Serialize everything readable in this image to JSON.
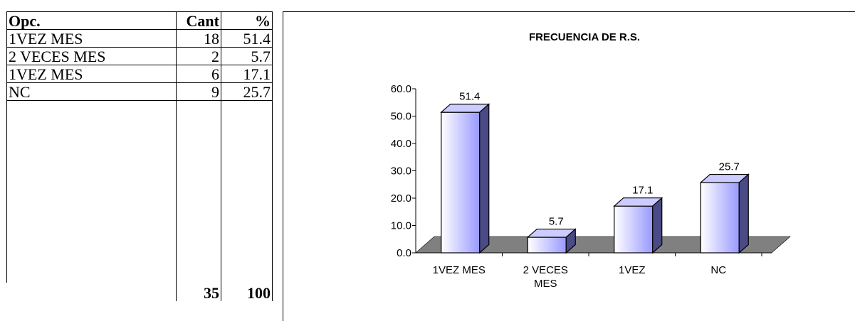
{
  "table": {
    "headers": {
      "opc": "Opc.",
      "cant": "Cant",
      "pct": "%"
    },
    "rows": [
      {
        "opc": "1VEZ MES",
        "cant": "18",
        "pct": "51.4"
      },
      {
        "opc": "2 VECES MES",
        "cant": "2",
        "pct": "5.7"
      },
      {
        "opc": "1VEZ MES",
        "cant": "6",
        "pct": "17.1"
      },
      {
        "opc": "NC",
        "cant": "9",
        "pct": "25.7"
      }
    ],
    "total": {
      "cant": "35",
      "pct": "100"
    }
  },
  "chart_data": {
    "type": "bar",
    "title": "FRECUENCIA DE R.S.",
    "categories": [
      [
        "1VEZ MES"
      ],
      [
        "2 VECES",
        "MES"
      ],
      [
        "1VEZ"
      ],
      [
        "NC"
      ]
    ],
    "values": [
      51.4,
      5.7,
      17.1,
      25.7
    ],
    "value_labels": [
      "51.4",
      "5.7",
      "17.1",
      "25.7"
    ],
    "ylim": [
      0,
      60
    ],
    "yticks": [
      "0.0",
      "10.0",
      "20.0",
      "30.0",
      "40.0",
      "50.0",
      "60.0"
    ],
    "style": "3d-column",
    "colors": {
      "bar_front_light": "#ffffff",
      "bar_front_dark": "#9999ff",
      "bar_top": "#ccccff",
      "bar_side": "#4a4a86",
      "floor": "#808080"
    },
    "grid": false,
    "legend": "none"
  }
}
